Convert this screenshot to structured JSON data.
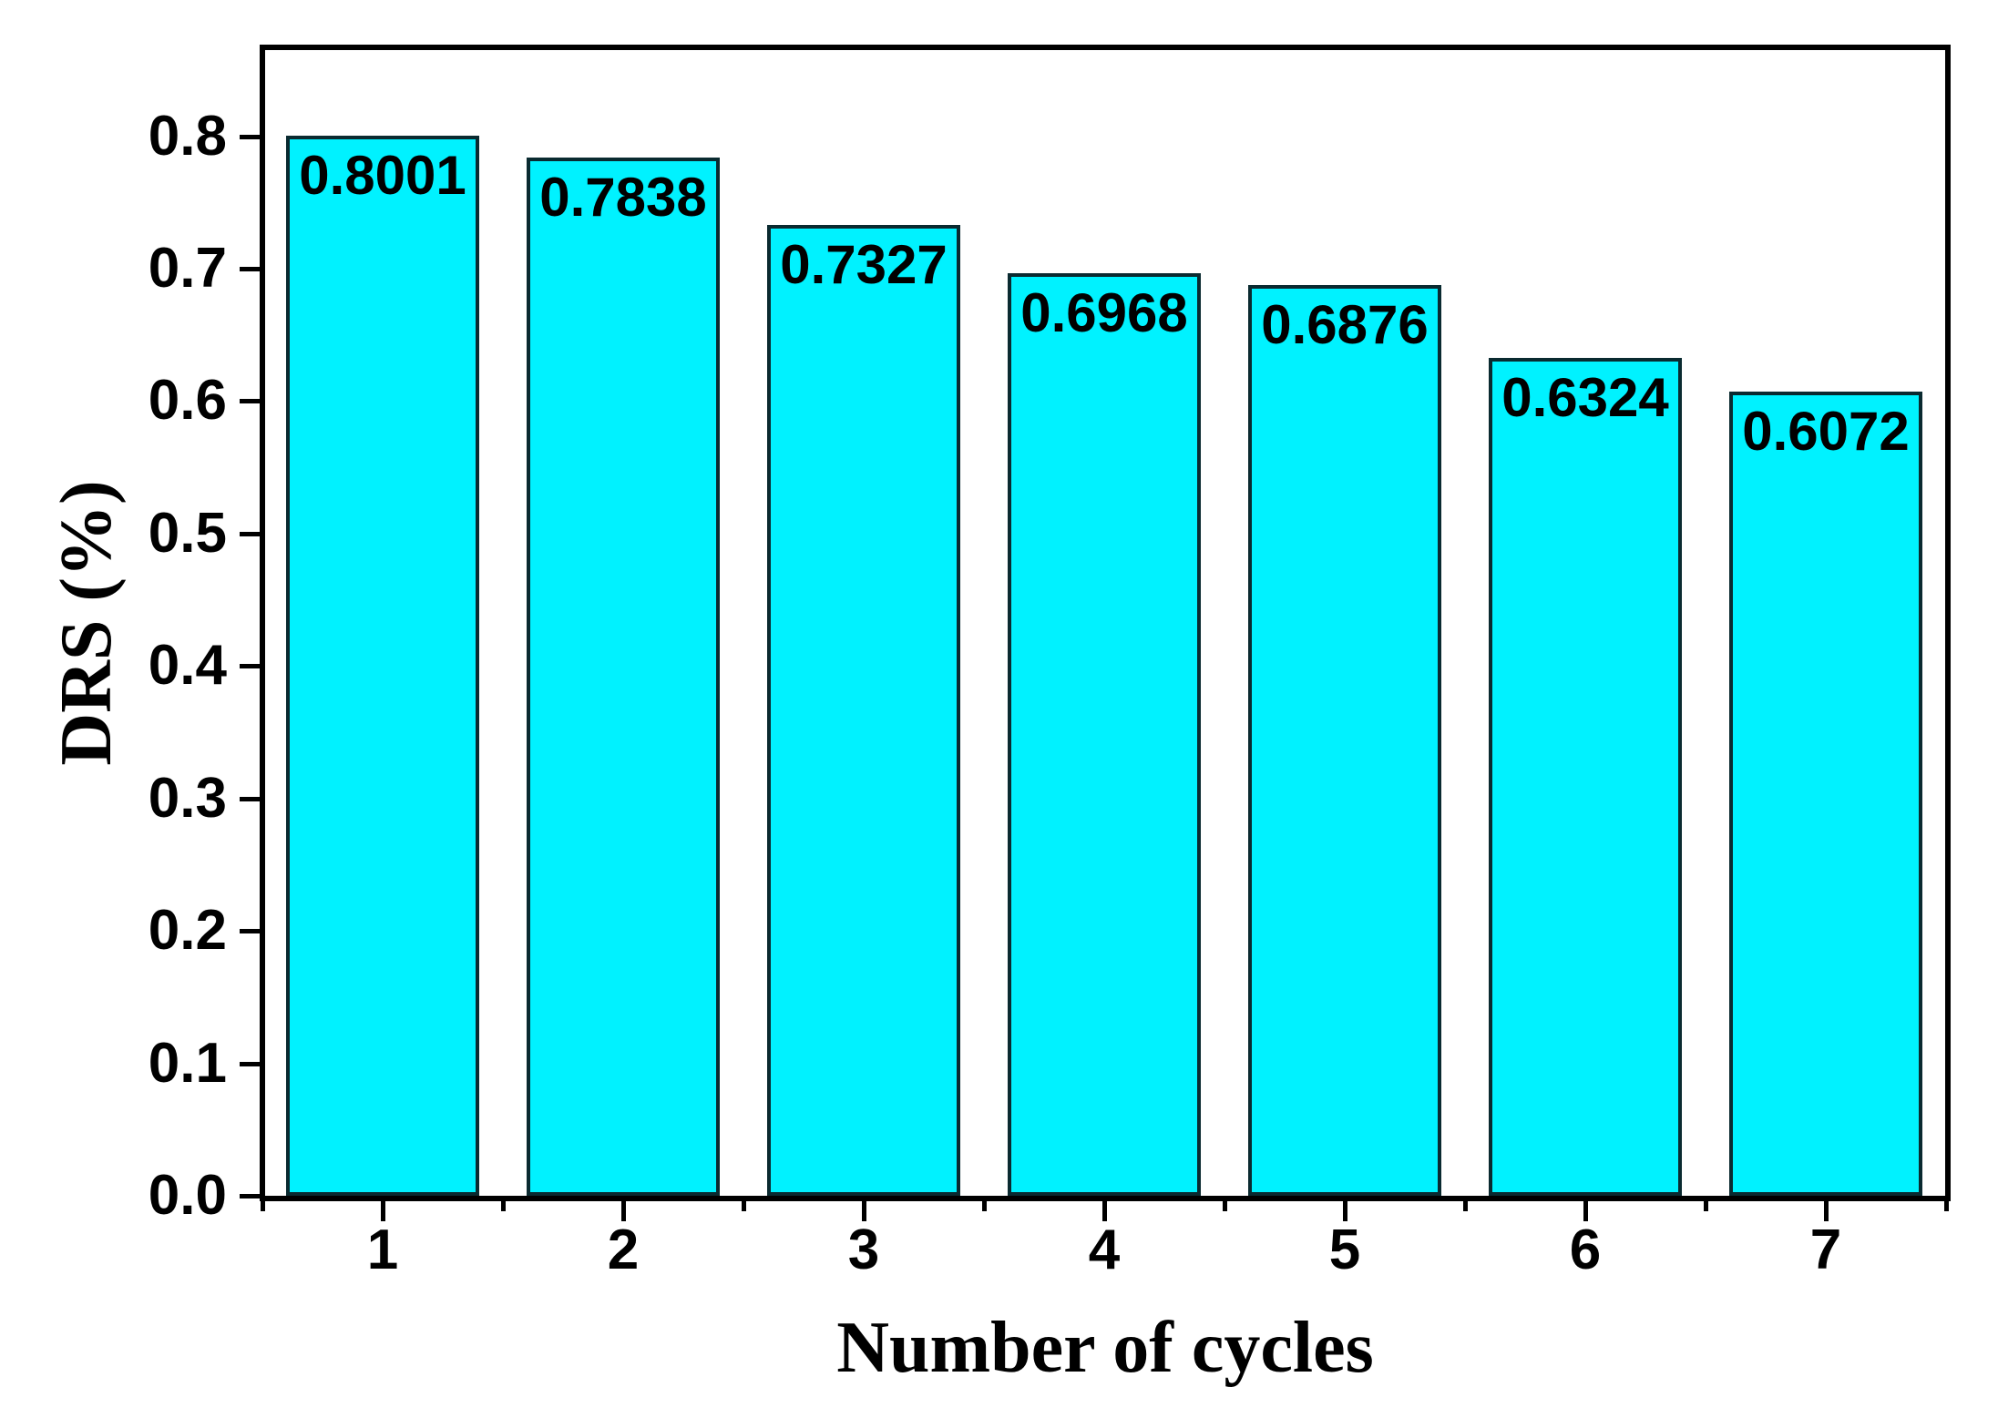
{
  "chart_data": {
    "type": "bar",
    "categories": [
      "1",
      "2",
      "3",
      "4",
      "5",
      "6",
      "7"
    ],
    "values": [
      0.8001,
      0.7838,
      0.7327,
      0.6968,
      0.6876,
      0.6324,
      0.6072
    ],
    "bar_labels": [
      "0.8001",
      "0.7838",
      "0.7327",
      "0.6968",
      "0.6876",
      "0.6324",
      "0.6072"
    ],
    "title": "",
    "xlabel": "Number of cycles",
    "ylabel": "DRS (%)",
    "ylim": [
      0,
      0.865
    ],
    "xlim": [
      0.5,
      7.5
    ],
    "yticks": [
      "0.0",
      "0.1",
      "0.2",
      "0.3",
      "0.4",
      "0.5",
      "0.6",
      "0.7",
      "0.8"
    ],
    "grid": false,
    "legend": "none",
    "bar_fill_color": "#00F2FF",
    "bar_border_color": "#0a2a30",
    "axis_color": "#000000",
    "label_color": "#000000",
    "background_color": "#ffffff"
  }
}
